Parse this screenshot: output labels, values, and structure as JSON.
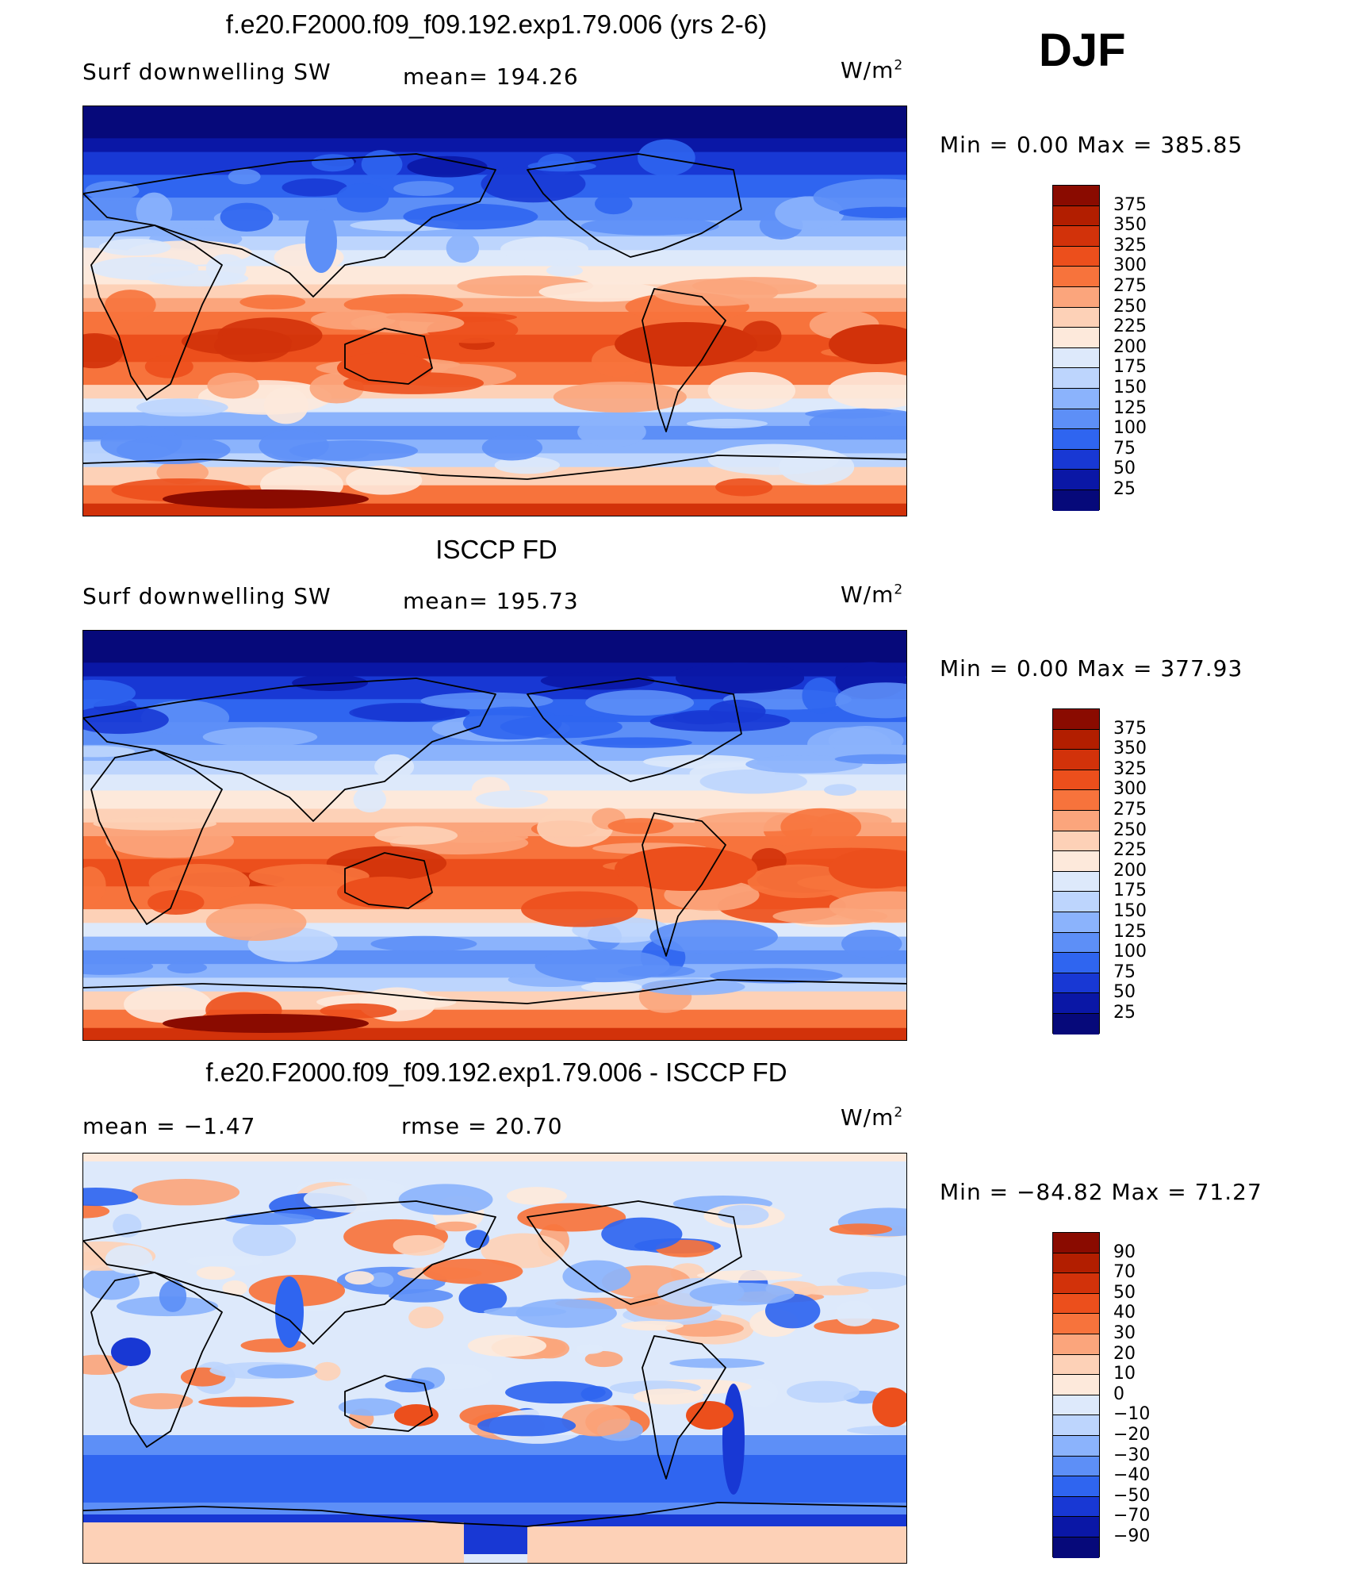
{
  "season": "DJF",
  "chart_data": [
    {
      "type": "heatmap",
      "title": "f.e20.F2000.f09_f09.192.exp1.79.006 (yrs 2-6)",
      "variable": "Surf downwelling SW",
      "units": "W/m",
      "stat_left": "",
      "stat_mid": "mean=  194.26",
      "minmax": "Min  =      0.00  Max  =  385.85",
      "levels": [
        375,
        350,
        325,
        300,
        275,
        250,
        225,
        200,
        175,
        150,
        125,
        100,
        75,
        50,
        25
      ],
      "colors": [
        "#8a0b00",
        "#b21e00",
        "#d2320a",
        "#ec4f1c",
        "#f7733c",
        "#fba57c",
        "#fdd1b7",
        "#fde9db",
        "#dde9fb",
        "#bdd5fd",
        "#8bb3fc",
        "#5d8ff7",
        "#2f65f0",
        "#1838d4",
        "#0a17a6",
        "#06097a"
      ]
    },
    {
      "type": "heatmap",
      "title": "ISCCP FD",
      "variable": "Surf downwelling SW",
      "units": "W/m",
      "stat_left": "",
      "stat_mid": "mean=  195.73",
      "minmax": "Min  =      0.00  Max  =  377.93",
      "levels": [
        375,
        350,
        325,
        300,
        275,
        250,
        225,
        200,
        175,
        150,
        125,
        100,
        75,
        50,
        25
      ],
      "colors": [
        "#8a0b00",
        "#b21e00",
        "#d2320a",
        "#ec4f1c",
        "#f7733c",
        "#fba57c",
        "#fdd1b7",
        "#fde9db",
        "#dde9fb",
        "#bdd5fd",
        "#8bb3fc",
        "#5d8ff7",
        "#2f65f0",
        "#1838d4",
        "#0a17a6",
        "#06097a"
      ]
    },
    {
      "type": "heatmap",
      "title": "f.e20.F2000.f09_f09.192.exp1.79.006 - ISCCP FD",
      "variable": "",
      "units": "W/m",
      "stat_left": "mean  =    −1.47",
      "stat_mid": "rmse  =    20.70",
      "minmax": "Min  =  −84.82  Max  =    71.27",
      "levels": [
        "90",
        "70",
        "50",
        "40",
        "30",
        "20",
        "10",
        "0",
        "−10",
        "−20",
        "−30",
        "−40",
        "−50",
        "−70",
        "−90"
      ],
      "colors": [
        "#8a0b00",
        "#b21e00",
        "#d2320a",
        "#ec4f1c",
        "#f7733c",
        "#fba57c",
        "#fdd1b7",
        "#fde9db",
        "#dde9fb",
        "#bdd5fd",
        "#8bb3fc",
        "#5d8ff7",
        "#2f65f0",
        "#1838d4",
        "#0a17a6",
        "#06097a"
      ]
    }
  ]
}
